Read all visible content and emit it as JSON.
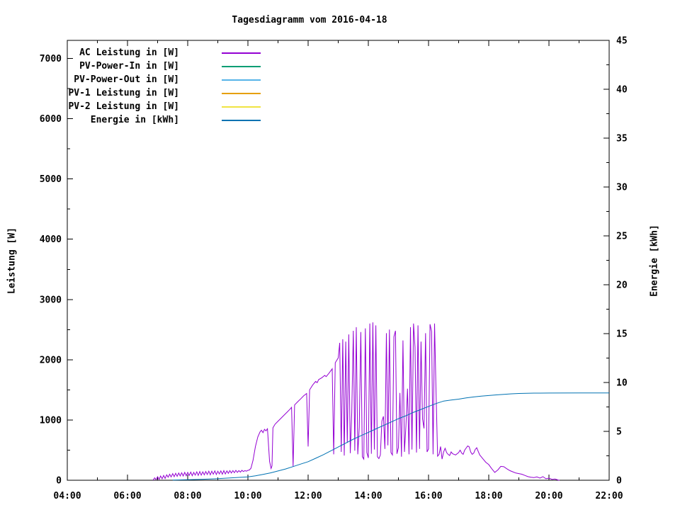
{
  "chart_data": {
    "type": "line",
    "title": "Tagesdiagramm vom 2016-04-18",
    "grid": false,
    "legend_position": "top-left-inside",
    "x_axis": {
      "min": 4,
      "max": 22,
      "tick_values": [
        4,
        6,
        8,
        10,
        12,
        14,
        16,
        18,
        20,
        22
      ],
      "tick_labels": [
        "04:00",
        "06:00",
        "08:00",
        "10:00",
        "12:00",
        "14:00",
        "16:00",
        "18:00",
        "20:00",
        "22:00"
      ],
      "minor_per_major": 1
    },
    "y_left": {
      "label": "Leistung [W]",
      "min": 0,
      "max": 7300,
      "tick_values": [
        0,
        1000,
        2000,
        3000,
        4000,
        5000,
        6000,
        7000
      ],
      "tick_labels": [
        "0",
        "1000",
        "2000",
        "3000",
        "4000",
        "5000",
        "6000",
        "7000"
      ]
    },
    "y_right": {
      "label": "Energie [kWh]",
      "min": 0,
      "max": 45,
      "tick_values": [
        0,
        5,
        10,
        15,
        20,
        25,
        30,
        35,
        40,
        45
      ],
      "tick_labels": [
        "0",
        "5",
        "10",
        "15",
        "20",
        "25",
        "30",
        "35",
        "40",
        "45"
      ]
    },
    "series": [
      {
        "label": "AC Leistung in [W]",
        "color": "#9400d3",
        "axis": "left",
        "x": [
          6.85,
          6.9,
          6.95,
          7.0,
          7.05,
          7.1,
          7.15,
          7.2,
          7.25,
          7.3,
          7.35,
          7.4,
          7.45,
          7.5,
          7.55,
          7.6,
          7.65,
          7.7,
          7.75,
          7.8,
          7.85,
          7.9,
          7.95,
          8.0,
          8.05,
          8.1,
          8.15,
          8.2,
          8.25,
          8.3,
          8.35,
          8.4,
          8.45,
          8.5,
          8.55,
          8.6,
          8.65,
          8.7,
          8.75,
          8.8,
          8.85,
          8.9,
          8.95,
          9.0,
          9.05,
          9.1,
          9.15,
          9.2,
          9.25,
          9.3,
          9.35,
          9.4,
          9.45,
          9.5,
          9.55,
          9.6,
          9.65,
          9.7,
          9.75,
          9.8,
          9.85,
          9.9,
          9.95,
          10.0,
          10.05,
          10.1,
          10.17,
          10.25,
          10.33,
          10.4,
          10.45,
          10.5,
          10.55,
          10.6,
          10.65,
          10.72,
          10.77,
          10.8,
          10.83,
          10.9,
          11.0,
          11.1,
          11.2,
          11.3,
          11.4,
          11.45,
          11.5,
          11.55,
          11.65,
          11.75,
          11.85,
          11.95,
          12.0,
          12.05,
          12.15,
          12.25,
          12.3,
          12.35,
          12.45,
          12.55,
          12.6,
          12.7,
          12.8,
          12.85,
          12.9,
          13.0,
          13.05,
          13.1,
          13.15,
          13.2,
          13.25,
          13.3,
          13.35,
          13.4,
          13.45,
          13.5,
          13.55,
          13.6,
          13.65,
          13.7,
          13.75,
          13.8,
          13.85,
          13.9,
          13.95,
          14.0,
          14.05,
          14.1,
          14.15,
          14.2,
          14.25,
          14.3,
          14.35,
          14.4,
          14.45,
          14.5,
          14.55,
          14.6,
          14.65,
          14.7,
          14.75,
          14.8,
          14.85,
          14.9,
          14.95,
          15.0,
          15.05,
          15.1,
          15.15,
          15.2,
          15.25,
          15.3,
          15.35,
          15.4,
          15.45,
          15.5,
          15.55,
          15.6,
          15.65,
          15.7,
          15.75,
          15.8,
          15.85,
          15.9,
          15.95,
          16.0,
          16.05,
          16.1,
          16.15,
          16.2,
          16.25,
          16.3,
          16.35,
          16.4,
          16.45,
          16.5,
          16.55,
          16.6,
          16.65,
          16.7,
          16.75,
          16.8,
          16.9,
          17.0,
          17.05,
          17.1,
          17.15,
          17.2,
          17.3,
          17.35,
          17.4,
          17.45,
          17.5,
          17.55,
          17.6,
          17.65,
          17.7,
          17.75,
          17.8,
          17.85,
          17.9,
          18.0,
          18.1,
          18.2,
          18.3,
          18.4,
          18.5,
          18.6,
          18.7,
          18.8,
          18.9,
          19.0,
          19.1,
          19.2,
          19.3,
          19.4,
          19.5,
          19.6,
          19.7,
          19.8,
          19.9,
          20.0,
          20.1,
          20.2,
          20.3,
          20.35
        ],
        "y": [
          0,
          40,
          10,
          60,
          15,
          70,
          25,
          80,
          30,
          90,
          50,
          100,
          55,
          110,
          60,
          115,
          65,
          120,
          70,
          125,
          70,
          130,
          75,
          130,
          80,
          135,
          75,
          130,
          85,
          140,
          80,
          145,
          85,
          140,
          90,
          145,
          95,
          150,
          90,
          150,
          100,
          155,
          95,
          150,
          105,
          155,
          100,
          160,
          105,
          155,
          115,
          160,
          120,
          160,
          125,
          165,
          130,
          160,
          135,
          165,
          145,
          160,
          150,
          165,
          170,
          200,
          330,
          560,
          720,
          800,
          830,
          790,
          845,
          820,
          855,
          310,
          195,
          240,
          870,
          930,
          980,
          1030,
          1080,
          1130,
          1180,
          1210,
          230,
          1250,
          1300,
          1350,
          1400,
          1440,
          560,
          1500,
          1580,
          1640,
          1620,
          1670,
          1700,
          1740,
          1720,
          1780,
          1850,
          430,
          1950,
          2030,
          2280,
          470,
          2340,
          410,
          2300,
          620,
          2420,
          450,
          1120,
          2480,
          490,
          2540,
          430,
          880,
          2460,
          390,
          350,
          2520,
          460,
          370,
          2600,
          440,
          2620,
          510,
          2570,
          390,
          360,
          420,
          980,
          1060,
          520,
          2440,
          580,
          2500,
          460,
          420,
          2380,
          2480,
          440,
          540,
          1450,
          390,
          2320,
          470,
          910,
          1520,
          430,
          2540,
          510,
          2600,
          2210,
          460,
          2570,
          520,
          2300,
          1020,
          860,
          2440,
          470,
          520,
          2590,
          2470,
          430,
          2600,
          1460,
          400,
          430,
          560,
          350,
          470,
          530,
          460,
          430,
          410,
          470,
          440,
          420,
          460,
          500,
          450,
          430,
          500,
          570,
          555,
          470,
          430,
          450,
          510,
          540,
          480,
          420,
          390,
          360,
          330,
          300,
          260,
          190,
          130,
          170,
          230,
          225,
          190,
          160,
          140,
          120,
          110,
          100,
          80,
          60,
          50,
          45,
          55,
          35,
          60,
          25,
          35,
          15,
          20,
          5,
          0
        ]
      },
      {
        "label": "PV-Power-In in [W]",
        "color": "#009e73",
        "axis": "left",
        "x": [],
        "y": []
      },
      {
        "label": "PV-Power-Out in [W]",
        "color": "#56b4e9",
        "axis": "left",
        "x": [],
        "y": []
      },
      {
        "label": "PV-1 Leistung in [W]",
        "color": "#e69f00",
        "axis": "left",
        "x": [],
        "y": []
      },
      {
        "label": "PV-2 Leistung in [W]",
        "color": "#f0e442",
        "axis": "left",
        "x": [],
        "y": []
      },
      {
        "label": "Energie in [kWh]",
        "color": "#0072b2",
        "axis": "right",
        "x": [
          7.5,
          8.0,
          8.5,
          9.0,
          9.5,
          10.0,
          10.25,
          10.5,
          10.75,
          11.0,
          11.25,
          11.5,
          11.75,
          12.0,
          12.25,
          12.5,
          12.75,
          13.0,
          13.25,
          13.5,
          13.75,
          14.0,
          14.25,
          14.5,
          14.75,
          15.0,
          15.25,
          15.5,
          15.75,
          16.0,
          16.25,
          16.5,
          16.75,
          17.0,
          17.25,
          17.5,
          17.75,
          18.0,
          18.25,
          18.5,
          18.75,
          19.0,
          19.25,
          19.5,
          20.0,
          21.0,
          22.0
        ],
        "y": [
          0.02,
          0.05,
          0.1,
          0.17,
          0.25,
          0.35,
          0.45,
          0.6,
          0.75,
          0.95,
          1.15,
          1.4,
          1.65,
          1.9,
          2.25,
          2.6,
          3.0,
          3.4,
          3.8,
          4.2,
          4.55,
          4.9,
          5.25,
          5.6,
          5.95,
          6.3,
          6.6,
          6.95,
          7.25,
          7.55,
          7.85,
          8.1,
          8.2,
          8.3,
          8.42,
          8.52,
          8.6,
          8.67,
          8.73,
          8.79,
          8.84,
          8.88,
          8.9,
          8.91,
          8.92,
          8.93,
          8.93
        ]
      }
    ]
  }
}
